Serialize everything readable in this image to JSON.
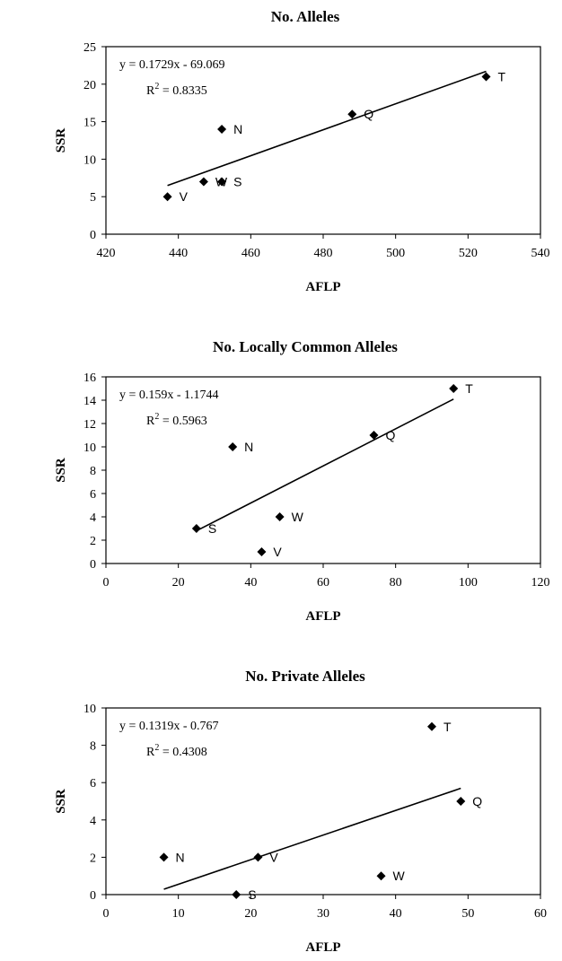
{
  "chart_data": [
    {
      "type": "scatter",
      "title": "No. Alleles",
      "xlabel": "AFLP",
      "ylabel": "SSR",
      "xlim": [
        420,
        540
      ],
      "ylim": [
        0,
        25
      ],
      "xticks": [
        420,
        440,
        460,
        480,
        500,
        520,
        540
      ],
      "yticks": [
        0,
        5,
        10,
        15,
        20,
        25
      ],
      "points": [
        {
          "label": "V",
          "x": 437,
          "y": 5
        },
        {
          "label": "W",
          "x": 447,
          "y": 7
        },
        {
          "label": "S",
          "x": 452,
          "y": 7
        },
        {
          "label": "N",
          "x": 452,
          "y": 14
        },
        {
          "label": "Q",
          "x": 488,
          "y": 16
        },
        {
          "label": "T",
          "x": 525,
          "y": 21
        }
      ],
      "trendline": {
        "equation": "y = 0.1729x - 69.069",
        "r2_prefix": "R",
        "r2_suffix": " = 0.8335",
        "slope": 0.1729,
        "intercept": -69.069
      },
      "grid": false
    },
    {
      "type": "scatter",
      "title": "No. Locally Common Alleles",
      "xlabel": "AFLP",
      "ylabel": "SSR",
      "xlim": [
        0,
        120
      ],
      "ylim": [
        0,
        16
      ],
      "xticks": [
        0,
        20,
        40,
        60,
        80,
        100,
        120
      ],
      "yticks": [
        0,
        2,
        4,
        6,
        8,
        10,
        12,
        14,
        16
      ],
      "points": [
        {
          "label": "S",
          "x": 25,
          "y": 3
        },
        {
          "label": "N",
          "x": 35,
          "y": 10
        },
        {
          "label": "V",
          "x": 43,
          "y": 1
        },
        {
          "label": "W",
          "x": 48,
          "y": 4
        },
        {
          "label": "Q",
          "x": 74,
          "y": 11
        },
        {
          "label": "T",
          "x": 96,
          "y": 15
        }
      ],
      "trendline": {
        "equation": "y = 0.159x - 1.1744",
        "r2_prefix": "R",
        "r2_suffix": " = 0.5963",
        "slope": 0.159,
        "intercept": -1.1744
      },
      "grid": false
    },
    {
      "type": "scatter",
      "title": "No. Private Alleles",
      "xlabel": "AFLP",
      "ylabel": "SSR",
      "xlim": [
        0,
        60
      ],
      "ylim": [
        0,
        10
      ],
      "xticks": [
        0,
        10,
        20,
        30,
        40,
        50,
        60
      ],
      "yticks": [
        0,
        2,
        4,
        6,
        8,
        10
      ],
      "points": [
        {
          "label": "N",
          "x": 8,
          "y": 2
        },
        {
          "label": "S",
          "x": 18,
          "y": 0
        },
        {
          "label": "V",
          "x": 21,
          "y": 2
        },
        {
          "label": "W",
          "x": 38,
          "y": 1
        },
        {
          "label": "T",
          "x": 45,
          "y": 9
        },
        {
          "label": "Q",
          "x": 49,
          "y": 5
        }
      ],
      "trendline": {
        "equation": "y = 0.1319x - 0.767",
        "r2_prefix": "R",
        "r2_suffix": " = 0.4308",
        "slope": 0.1319,
        "intercept": -0.767
      },
      "grid": false
    }
  ],
  "colors": {
    "marker": "#000000",
    "line": "#000000",
    "frame": "#000000"
  }
}
